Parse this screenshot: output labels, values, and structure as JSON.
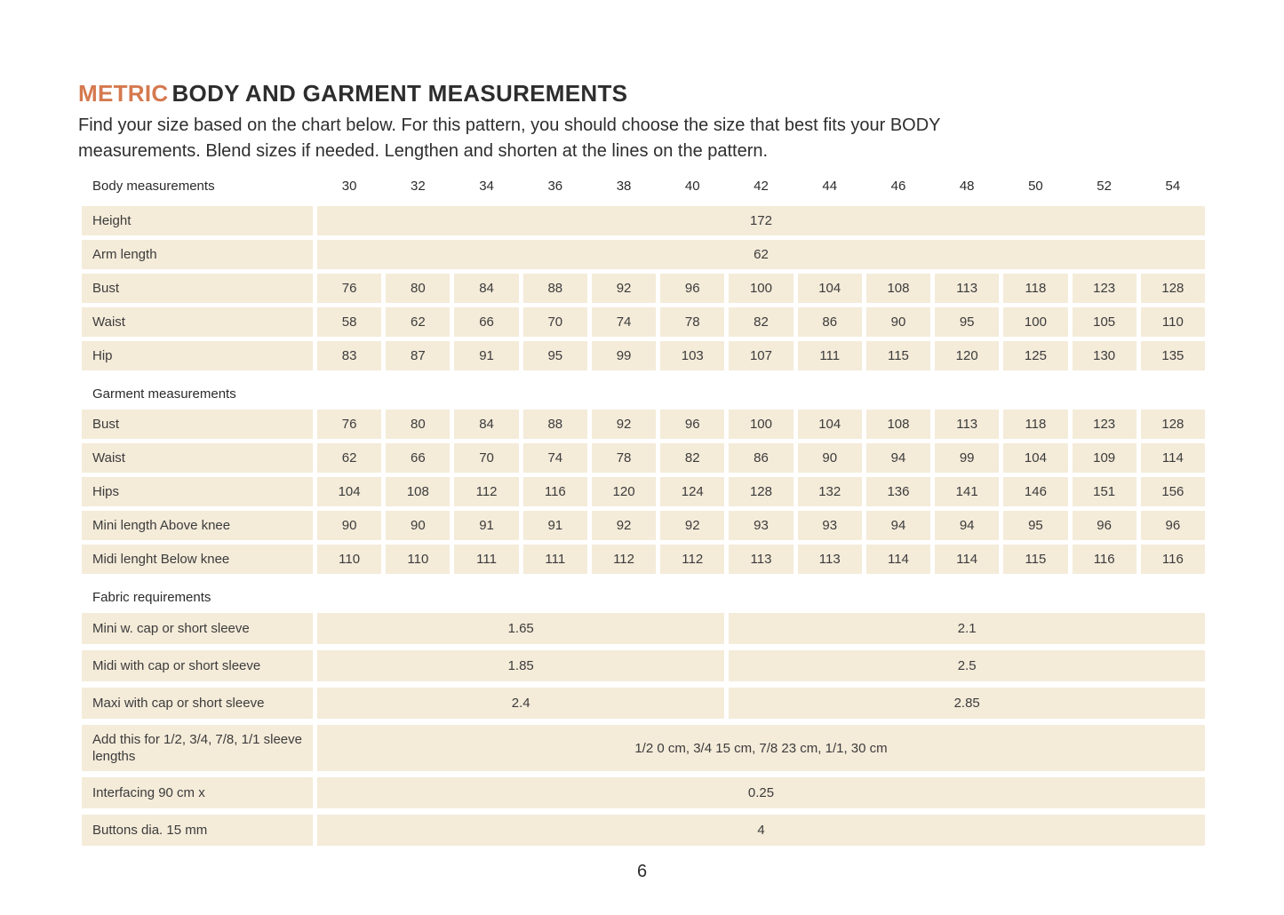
{
  "page": {
    "title_accent": "METRIC",
    "title_rest": "BODY AND GARMENT MEASUREMENTS",
    "intro_line1": "Find your size based on the chart below. For this pattern, you should choose the size that best fits your BODY",
    "intro_line2": "measurements. Blend sizes if needed. Lengthen and shorten at the lines on the pattern.",
    "page_number": "6"
  },
  "colors": {
    "accent": "#D5794F",
    "cell_background": "#F4EBD9",
    "text": "#3C3C3C"
  },
  "table": {
    "header_label": "Body measurements",
    "sizes": [
      "30",
      "32",
      "34",
      "36",
      "38",
      "40",
      "42",
      "44",
      "46",
      "48",
      "50",
      "52",
      "54"
    ],
    "body_span_rows": [
      {
        "label": "Height",
        "value": "172"
      },
      {
        "label": "Arm length",
        "value": "62"
      }
    ],
    "body_rows": [
      {
        "label": "Bust",
        "values": [
          "76",
          "80",
          "84",
          "88",
          "92",
          "96",
          "100",
          "104",
          "108",
          "113",
          "118",
          "123",
          "128"
        ]
      },
      {
        "label": "Waist",
        "values": [
          "58",
          "62",
          "66",
          "70",
          "74",
          "78",
          "82",
          "86",
          "90",
          "95",
          "100",
          "105",
          "110"
        ]
      },
      {
        "label": "Hip",
        "values": [
          "83",
          "87",
          "91",
          "95",
          "99",
          "103",
          "107",
          "111",
          "115",
          "120",
          "125",
          "130",
          "135"
        ]
      }
    ],
    "garment_header": "Garment measurements",
    "garment_rows": [
      {
        "label": "Bust",
        "values": [
          "76",
          "80",
          "84",
          "88",
          "92",
          "96",
          "100",
          "104",
          "108",
          "113",
          "118",
          "123",
          "128"
        ]
      },
      {
        "label": "Waist",
        "values": [
          "62",
          "66",
          "70",
          "74",
          "78",
          "82",
          "86",
          "90",
          "94",
          "99",
          "104",
          "109",
          "114"
        ]
      },
      {
        "label": "Hips",
        "values": [
          "104",
          "108",
          "112",
          "116",
          "120",
          "124",
          "128",
          "132",
          "136",
          "141",
          "146",
          "151",
          "156"
        ]
      },
      {
        "label": "Mini length Above knee",
        "values": [
          "90",
          "90",
          "91",
          "91",
          "92",
          "92",
          "93",
          "93",
          "94",
          "94",
          "95",
          "96",
          "96"
        ]
      },
      {
        "label": "Midi lenght Below knee",
        "values": [
          "110",
          "110",
          "111",
          "111",
          "112",
          "112",
          "113",
          "113",
          "114",
          "114",
          "115",
          "116",
          "116"
        ]
      }
    ],
    "fabric_header": "Fabric requirements",
    "fabric_split_rows": [
      {
        "label": "Mini w. cap or short sleeve",
        "left": "1.65",
        "right": "2.1"
      },
      {
        "label": "Midi with cap or short sleeve",
        "left": "1.85",
        "right": "2.5"
      },
      {
        "label": "Maxi with cap or short sleeve",
        "left": "2.4",
        "right": "2.85"
      }
    ],
    "fabric_full_rows": [
      {
        "label": "Add this for 1/2, 3/4, 7/8, 1/1 sleeve lengths",
        "value": "1/2 0 cm, 3/4 15 cm, 7/8 23 cm, 1/1, 30 cm"
      },
      {
        "label": "Interfacing 90 cm x",
        "value": "0.25"
      },
      {
        "label": "Buttons dia. 15 mm",
        "value": "4"
      }
    ]
  }
}
